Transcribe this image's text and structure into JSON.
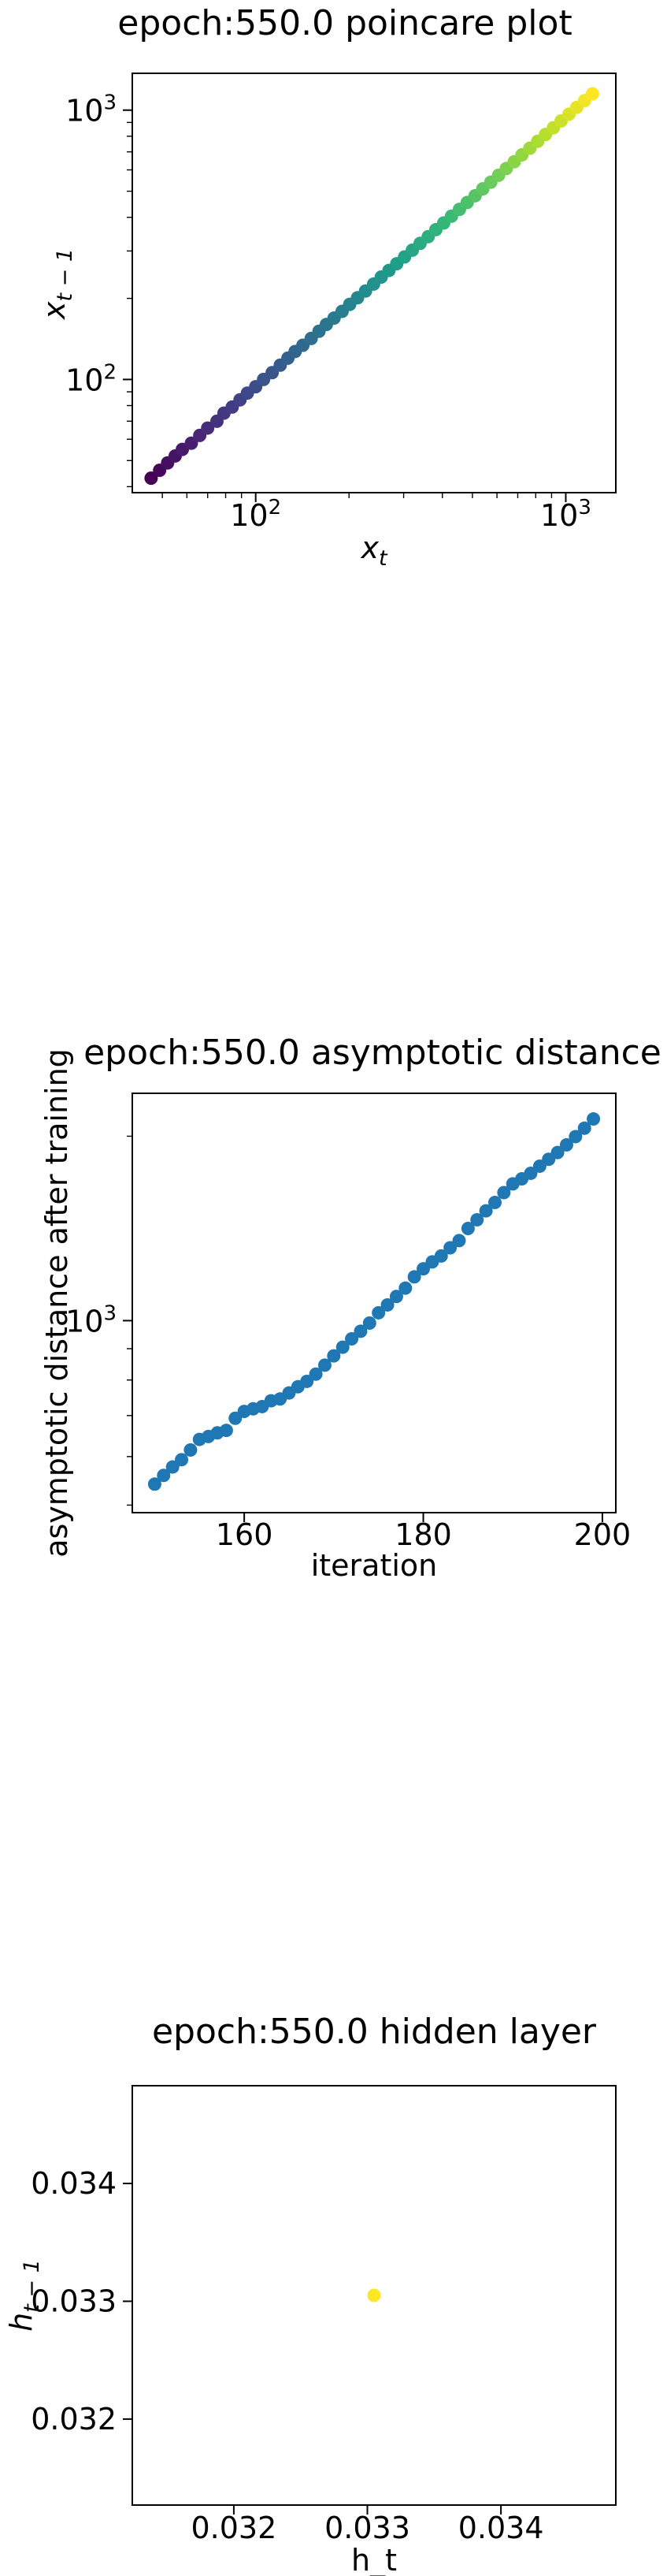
{
  "chart_data": [
    {
      "type": "scatter",
      "title": "epoch:550.0 poincare plot",
      "xlabel": "x_t",
      "ylabel": "x_{t-1}",
      "xscale": "log",
      "yscale": "log",
      "xlim": [
        40,
        1450
      ],
      "ylim": [
        38,
        1370
      ],
      "xticks": [
        {
          "value": 100,
          "base": "10",
          "exp": "2"
        },
        {
          "value": 1000,
          "base": "10",
          "exp": "3"
        }
      ],
      "yticks": [
        {
          "value": 100,
          "base": "10",
          "exp": "2"
        },
        {
          "value": 1000,
          "base": "10",
          "exp": "3"
        }
      ],
      "colormap": "viridis",
      "grid": false,
      "points": [
        [
          46,
          43
        ],
        [
          49,
          46
        ],
        [
          52,
          49
        ],
        [
          55,
          52
        ],
        [
          58,
          55
        ],
        [
          62,
          58
        ],
        [
          66,
          62
        ],
        [
          70,
          66
        ],
        [
          75,
          70
        ],
        [
          79,
          75
        ],
        [
          84,
          79
        ],
        [
          89,
          84
        ],
        [
          94,
          89
        ],
        [
          100,
          94
        ],
        [
          106,
          100
        ],
        [
          113,
          106
        ],
        [
          120,
          113
        ],
        [
          127,
          120
        ],
        [
          134,
          127
        ],
        [
          142,
          134
        ],
        [
          151,
          142
        ],
        [
          160,
          151
        ],
        [
          169,
          160
        ],
        [
          179,
          169
        ],
        [
          190,
          179
        ],
        [
          201,
          190
        ],
        [
          213,
          201
        ],
        [
          226,
          213
        ],
        [
          240,
          226
        ],
        [
          254,
          240
        ],
        [
          269,
          254
        ],
        [
          285,
          269
        ],
        [
          302,
          285
        ],
        [
          320,
          302
        ],
        [
          339,
          320
        ],
        [
          360,
          339
        ],
        [
          381,
          360
        ],
        [
          404,
          381
        ],
        [
          428,
          404
        ],
        [
          454,
          428
        ],
        [
          481,
          454
        ],
        [
          510,
          481
        ],
        [
          540,
          510
        ],
        [
          573,
          540
        ],
        [
          607,
          573
        ],
        [
          643,
          607
        ],
        [
          682,
          643
        ],
        [
          722,
          682
        ],
        [
          766,
          722
        ],
        [
          812,
          766
        ],
        [
          860,
          812
        ],
        [
          912,
          860
        ],
        [
          966,
          912
        ],
        [
          1024,
          966
        ],
        [
          1085,
          1024
        ],
        [
          1150,
          1085
        ],
        [
          1219,
          1150
        ]
      ]
    },
    {
      "type": "scatter",
      "title": "epoch:550.0 asymptotic distance",
      "xlabel": "iteration",
      "ylabel": "asymptotic distance after training",
      "xscale": "linear",
      "yscale": "log",
      "xlim": [
        147.5,
        201.5
      ],
      "ylim": [
        486,
        2350
      ],
      "xticks": [
        160,
        180,
        200
      ],
      "yticks": [
        {
          "value": 1000,
          "base": "10",
          "exp": "3"
        }
      ],
      "color": "#1f77b4",
      "grid": false,
      "x": [
        150,
        151,
        152,
        153,
        154,
        155,
        156,
        157,
        158,
        159,
        160,
        161,
        162,
        163,
        164,
        165,
        166,
        167,
        168,
        169,
        170,
        171,
        172,
        173,
        174,
        175,
        176,
        177,
        178,
        179,
        180,
        181,
        182,
        183,
        184,
        185,
        186,
        187,
        188,
        189,
        190,
        191,
        192,
        193,
        194,
        195,
        196,
        197,
        198,
        199
      ],
      "y": [
        541,
        559,
        577,
        593,
        615,
        640,
        647,
        656,
        662,
        693,
        711,
        718,
        724,
        740,
        745,
        762,
        780,
        796,
        818,
        846,
        876,
        905,
        934,
        961,
        991,
        1030,
        1061,
        1095,
        1130,
        1179,
        1215,
        1247,
        1275,
        1315,
        1351,
        1414,
        1461,
        1511,
        1559,
        1618,
        1672,
        1704,
        1740,
        1787,
        1834,
        1881,
        1936,
        1997,
        2061,
        2134
      ]
    },
    {
      "type": "scatter",
      "title": "epoch:550.0 hidden layer",
      "xlabel": "h_t",
      "ylabel": "h_{t-1}",
      "xlim": [
        0.03124,
        0.03486
      ],
      "ylim": [
        0.03127,
        0.03483
      ],
      "xticks": [
        "0.032",
        "0.033",
        "0.034"
      ],
      "yticks": [
        "0.032",
        "0.033",
        "0.034"
      ],
      "color": "#fde725",
      "grid": false,
      "points": [
        [
          0.03305,
          0.03305
        ]
      ]
    }
  ]
}
